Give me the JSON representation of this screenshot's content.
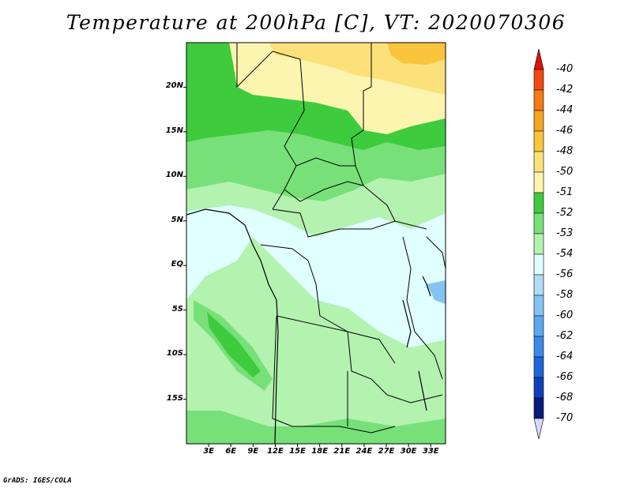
{
  "title": "Temperature at 200hPa [C], VT: 2020070306",
  "credit": "GrADS: IGES/COLA",
  "map": {
    "lat_labels": [
      "20N",
      "15N",
      "10N",
      "5N",
      "EQ",
      "5S",
      "10S",
      "15S"
    ],
    "lat_values": [
      20,
      15,
      10,
      5,
      0,
      -5,
      -10,
      -15
    ],
    "lon_labels": [
      "3E",
      "6E",
      "9E",
      "12E",
      "15E",
      "18E",
      "21E",
      "24E",
      "27E",
      "30E",
      "33E"
    ],
    "lon_values": [
      3,
      6,
      9,
      12,
      15,
      18,
      21,
      24,
      27,
      30,
      33
    ],
    "lon_range": [
      0,
      35
    ],
    "lat_range": [
      -20,
      25
    ]
  },
  "colorbar": {
    "labels": [
      "-40",
      "-42",
      "-44",
      "-46",
      "-48",
      "-50",
      "-51",
      "-52",
      "-53",
      "-54",
      "-56",
      "-58",
      "-60",
      "-62",
      "-64",
      "-66",
      "-68",
      "-70"
    ],
    "colors": [
      "#e01010",
      "#f04a10",
      "#f47a14",
      "#f7a324",
      "#fac43c",
      "#fce07a",
      "#fcf5b0",
      "#3ecb3e",
      "#78e078",
      "#b4f2b0",
      "#e0ffff",
      "#b0dcf8",
      "#84c4f4",
      "#5aa8f0",
      "#3c8ae8",
      "#1e66d8",
      "#0e40b8",
      "#0a1a7a",
      "#d8d8f8"
    ]
  },
  "chart_data": {
    "type": "heatmap",
    "title": "Temperature at 200hPa [C], VT: 2020070306",
    "xlabel": "",
    "ylabel": "",
    "x_ticks": [
      "3E",
      "6E",
      "9E",
      "12E",
      "15E",
      "18E",
      "21E",
      "24E",
      "27E",
      "30E",
      "33E"
    ],
    "y_ticks": [
      "20N",
      "15N",
      "10N",
      "5N",
      "EQ",
      "5S",
      "10S",
      "15S"
    ],
    "legend": {
      "placement": "right",
      "levels": [
        -40,
        -42,
        -44,
        -46,
        -48,
        -50,
        -51,
        -52,
        -53,
        -54,
        -56,
        -58,
        -60,
        -62,
        -64,
        -66,
        -68,
        -70
      ]
    }
  }
}
